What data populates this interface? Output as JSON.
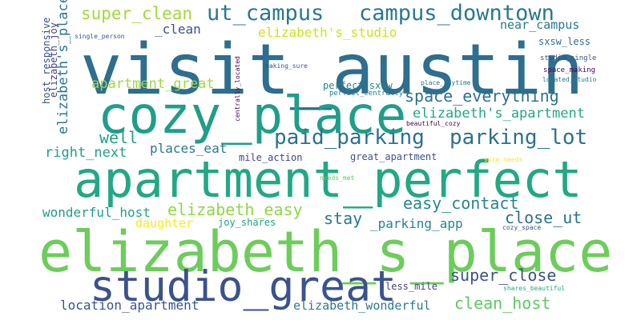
{
  "word_cloud": {
    "words": [
      {
        "text": "elizabeth_s_place",
        "color": "#6ccd5a"
      },
      {
        "text": "visit_austin",
        "color": "#2e6e8e"
      },
      {
        "text": "apartment_perfect",
        "color": "#22a884"
      },
      {
        "text": "cozy_place",
        "color": "#1f9e89"
      },
      {
        "text": "studio_great",
        "color": "#3b528b"
      },
      {
        "text": "ut_campus",
        "color": "#2a788e"
      },
      {
        "text": "campus_downtown",
        "color": "#2a788e"
      },
      {
        "text": "paid_parking",
        "color": "#2c718e"
      },
      {
        "text": "parking_lot",
        "color": "#2c718e"
      },
      {
        "text": "super_clean",
        "color": "#a0da39"
      },
      {
        "text": "space_everything",
        "color": "#2c718e"
      },
      {
        "text": "elizabeth_easy",
        "color": "#90d743"
      },
      {
        "text": "easy_contact",
        "color": "#25858e"
      },
      {
        "text": "elizabeth's_apartment",
        "color": "#22a884"
      },
      {
        "text": "super_close",
        "color": "#3b528b"
      },
      {
        "text": "close_ut",
        "color": "#2c718e"
      },
      {
        "text": "clean_host",
        "color": "#5ec962"
      },
      {
        "text": "well",
        "color": "#1f9e89"
      },
      {
        "text": "right_next",
        "color": "#1f9e89"
      },
      {
        "text": "places_eat",
        "color": "#2a788e"
      },
      {
        "text": "stay",
        "color": "#2a788e"
      },
      {
        "text": "_parking_app",
        "color": "#25858e"
      },
      {
        "text": "apartment_great",
        "color": "#a0da39"
      },
      {
        "text": "elizabeth's_studio",
        "color": "#cde11d"
      },
      {
        "text": "_clean",
        "color": "#3b528b"
      },
      {
        "text": "near_campus",
        "color": "#2a788e"
      },
      {
        "text": "wonderful_host",
        "color": "#1f9e89"
      },
      {
        "text": "location_apartment",
        "color": "#3b528b"
      },
      {
        "text": "elizabeth_wonderful",
        "color": "#2a788e"
      },
      {
        "text": "daughter",
        "color": "#fde725"
      },
      {
        "text": "joy_shares",
        "color": "#1fa187"
      },
      {
        "text": "mile_action",
        "color": "#414487"
      },
      {
        "text": "great_apartment",
        "color": "#3b528b"
      },
      {
        "text": "sxsw_less",
        "color": "#2c718e"
      },
      {
        "text": "perfect_sxsw",
        "color": "#25858e"
      },
      {
        "text": "perfect_centrally",
        "color": "#2a788e"
      },
      {
        "text": "less_mile",
        "color": "#414487"
      },
      {
        "text": "space_making",
        "color": "#440154"
      },
      {
        "text": "studio_single",
        "color": "#3b528b"
      },
      {
        "text": "place_anytime",
        "color": "#2a788e"
      },
      {
        "text": "located_studio",
        "color": "#2a788e"
      },
      {
        "text": "making_sure",
        "color": "#3b528b"
      },
      {
        "text": "single_person",
        "color": "#3b528b"
      },
      {
        "text": "beautiful_cozy",
        "color": "#440154"
      },
      {
        "text": "needs_met",
        "color": "#5ec962"
      },
      {
        "text": "sure_needs",
        "color": "#fde725"
      },
      {
        "text": "cozy_space",
        "color": "#3b528b"
      },
      {
        "text": "shares_beautiful",
        "color": "#22a884"
      },
      {
        "text": "host_responsive",
        "color": "#3b528b"
      },
      {
        "text": "elizabeth_joy",
        "color": "#414487"
      },
      {
        "text": "elizabeth's_place",
        "color": "#2a788e"
      },
      {
        "text": "centrally_located",
        "color": "#440154"
      }
    ]
  }
}
